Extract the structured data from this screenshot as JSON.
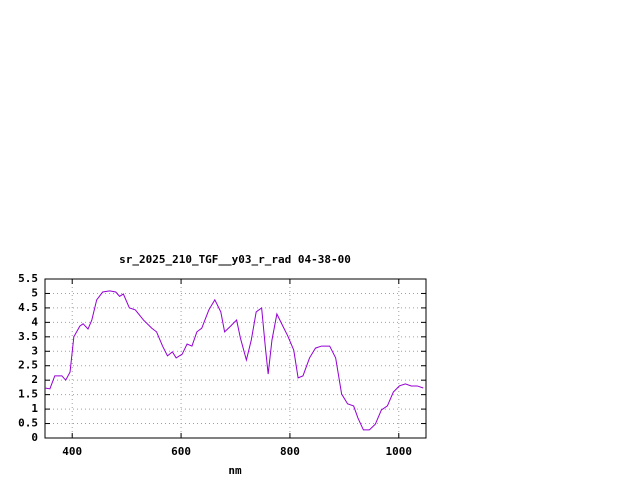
{
  "chart_data": {
    "type": "line",
    "title": "sr_2025_210_TGF__y03_r_rad 04-38-00",
    "x_label": "nm",
    "x": [
      350,
      359,
      368,
      381,
      388,
      396,
      403,
      414,
      420,
      429,
      436,
      445,
      456,
      469,
      480,
      487,
      494,
      505,
      516,
      531,
      546,
      555,
      566,
      575,
      584,
      591,
      602,
      611,
      620,
      629,
      638,
      651,
      662,
      673,
      680,
      691,
      702,
      709,
      720,
      729,
      738,
      748,
      755,
      760,
      767,
      776,
      787,
      796,
      807,
      815,
      824,
      836,
      847,
      858,
      873,
      884,
      895,
      906,
      917,
      925,
      935,
      946,
      957,
      968,
      979,
      990,
      1001,
      1012,
      1023,
      1034,
      1045
    ],
    "series": [
      {
        "color": "#9400d3",
        "values": [
          1.73,
          1.7,
          2.15,
          2.15,
          2.0,
          2.28,
          3.5,
          3.87,
          3.95,
          3.77,
          4.08,
          4.78,
          5.05,
          5.09,
          5.05,
          4.9,
          4.98,
          4.5,
          4.43,
          4.08,
          3.8,
          3.67,
          3.18,
          2.84,
          2.98,
          2.77,
          2.9,
          3.25,
          3.18,
          3.67,
          3.8,
          4.43,
          4.78,
          4.36,
          3.67,
          3.87,
          4.08,
          3.46,
          2.7,
          3.39,
          4.36,
          4.5,
          3.11,
          2.21,
          3.39,
          4.29,
          3.87,
          3.53,
          3.04,
          2.08,
          2.15,
          2.77,
          3.11,
          3.18,
          3.18,
          2.77,
          1.52,
          1.18,
          1.11,
          0.69,
          0.28,
          0.28,
          0.48,
          0.97,
          1.11,
          1.59,
          1.8,
          1.87,
          1.8,
          1.8,
          1.73
        ]
      }
    ],
    "xlim": [
      350,
      1050
    ],
    "xticks": [
      400,
      600,
      800,
      1000
    ],
    "ylim": [
      0,
      5.5
    ],
    "yticks": [
      0,
      0.5,
      1,
      1.5,
      2,
      2.5,
      3,
      3.5,
      4,
      4.5,
      5,
      5.5
    ],
    "grid": true
  }
}
